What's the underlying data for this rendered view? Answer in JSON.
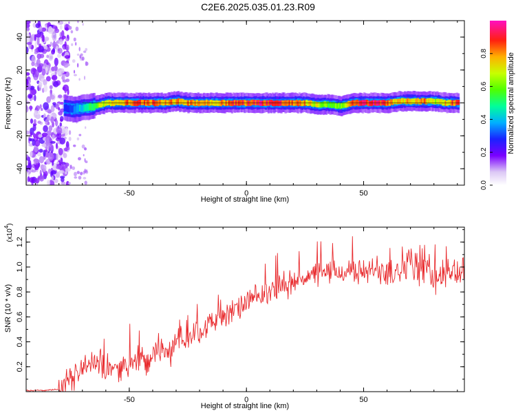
{
  "title": "C2E6.2025.035.01.23.R09",
  "chart_data": [
    {
      "type": "heatmap",
      "xlabel": "Height of straight line (km)",
      "ylabel": "Frequency (Hz)",
      "xlim": [
        -94,
        93
      ],
      "ylim": [
        -50,
        50
      ],
      "xticks": [
        -50,
        0,
        50
      ],
      "yticks": [
        -40,
        -20,
        0,
        20,
        40
      ],
      "colorbar": {
        "label": "Normalized spectral amplitude",
        "range": [
          0,
          1
        ],
        "ticks": [
          "0.0",
          "0.2",
          "0.4",
          "0.6",
          "0.8"
        ]
      },
      "ridge": {
        "description_free": true,
        "x": [
          -78,
          -74,
          -70,
          -65,
          -60,
          -55,
          -50,
          -45,
          -40,
          -35,
          -30,
          -25,
          -20,
          -15,
          -10,
          -5,
          0,
          5,
          10,
          15,
          20,
          25,
          30,
          35,
          40,
          45,
          50,
          55,
          60,
          65,
          70,
          75,
          80,
          85,
          90
        ],
        "freq_hz": [
          -3,
          -4,
          -3,
          -2,
          0,
          0,
          0,
          0,
          0,
          0,
          1,
          0,
          0,
          0,
          0,
          0,
          0,
          0,
          0,
          0,
          0,
          0,
          -1,
          -1,
          -2,
          0,
          0,
          0,
          0,
          1,
          1,
          1,
          1,
          0,
          0
        ],
        "amplitude": [
          0.3,
          0.35,
          0.45,
          0.6,
          0.75,
          0.8,
          0.85,
          0.9,
          0.9,
          0.85,
          0.8,
          0.85,
          0.85,
          0.8,
          0.85,
          0.9,
          0.9,
          0.95,
          0.95,
          0.9,
          0.85,
          0.8,
          0.7,
          0.6,
          0.65,
          0.85,
          0.95,
          0.95,
          0.9,
          0.75,
          0.8,
          0.85,
          0.7,
          0.8,
          0.95
        ]
      }
    },
    {
      "type": "line",
      "xlabel": "Height of straight line (km)",
      "ylabel": "SNR (10 * v/v)",
      "y_multiplier_label": "(x10",
      "y_multiplier_exp": "4",
      "xlim": [
        -94,
        93
      ],
      "ylim": [
        0,
        1.32
      ],
      "xticks": [
        -50,
        0,
        50
      ],
      "yticks": [
        "0.2",
        "0.4",
        "0.6",
        "0.8",
        "1.0",
        "1.2"
      ],
      "series": [
        {
          "color": "#e8282b",
          "x": [
            -94,
            -90,
            -85,
            -80,
            -78,
            -75,
            -72,
            -70,
            -68,
            -65,
            -62,
            -60,
            -57,
            -55,
            -52,
            -50,
            -48,
            -45,
            -42,
            -40,
            -38,
            -35,
            -32,
            -30,
            -28,
            -25,
            -22,
            -20,
            -18,
            -15,
            -12,
            -10,
            -8,
            -5,
            -2,
            0,
            2,
            5,
            8,
            10,
            12,
            15,
            18,
            20,
            22,
            25,
            28,
            30,
            32,
            35,
            38,
            40,
            42,
            45,
            48,
            50,
            52,
            55,
            58,
            60,
            62,
            65,
            68,
            70,
            72,
            75,
            78,
            80,
            82,
            85,
            88,
            90,
            93
          ],
          "y": [
            0.01,
            0.01,
            0.01,
            0.02,
            0.05,
            0.1,
            0.15,
            0.22,
            0.18,
            0.25,
            0.2,
            0.15,
            0.22,
            0.18,
            0.2,
            0.25,
            0.22,
            0.28,
            0.2,
            0.3,
            0.35,
            0.3,
            0.32,
            0.45,
            0.42,
            0.4,
            0.5,
            0.48,
            0.52,
            0.55,
            0.6,
            0.58,
            0.62,
            0.65,
            0.68,
            0.72,
            0.74,
            0.75,
            0.78,
            0.8,
            0.82,
            0.85,
            0.86,
            0.88,
            0.9,
            0.92,
            0.93,
            0.94,
            0.95,
            0.96,
            0.97,
            0.95,
            0.96,
            0.98,
            0.95,
            0.97,
            0.96,
            0.98,
            1.0,
            0.97,
            0.95,
            1.02,
            1.0,
            1.05,
            0.98,
            1.03,
            0.95,
            0.9,
            0.95,
            0.92,
            0.98,
            0.95,
            0.97
          ]
        }
      ]
    }
  ],
  "colors": {
    "line": "#e8282b",
    "axis": "#000000"
  }
}
